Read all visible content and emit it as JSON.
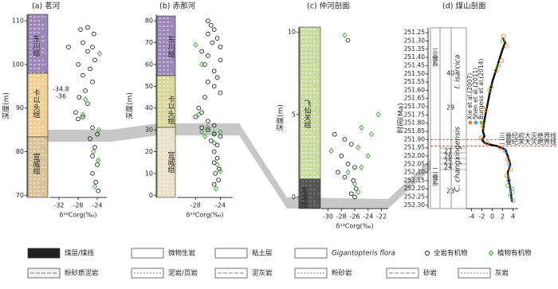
{
  "chart_data": [
    {
      "type": "scatter",
      "title": "(a) 茗河",
      "ylabel": "深度(m)",
      "xlabel": "δ¹³Corg(‰)",
      "xlim": [
        -34,
        -22
      ],
      "xticks": [
        -32,
        -28,
        -24
      ],
      "ylim": [
        69.5,
        111.5
      ],
      "yticks": [
        70,
        80,
        90,
        100,
        110
      ],
      "formations": [
        "东川组",
        "卡以头组",
        "宣威组"
      ],
      "annotations": [
        "-34.8",
        "-36"
      ],
      "series": [
        {
          "name": "全岩有机物",
          "color": "#222222",
          "marker": "circle",
          "x": [
            -27.5,
            -26,
            -24.7,
            -30,
            -27,
            -25,
            -26,
            -24.5,
            -28,
            -25.5,
            -27,
            -25,
            -26.5,
            -27.8,
            -26,
            -28.5,
            -27,
            -28,
            -25,
            -24,
            -25.5,
            -24.5,
            -25,
            -24,
            -25,
            -24.3,
            -23.8
          ],
          "values": [
            108,
            108.5,
            107,
            104,
            105,
            104,
            103,
            101,
            100,
            99,
            97.5,
            96,
            94,
            92.5,
            91,
            89,
            88,
            87.5,
            85.5,
            84,
            83,
            81,
            79,
            77,
            75,
            73,
            71
          ]
        },
        {
          "name": "植物有机物",
          "color": "#3a9a3a",
          "marker": "diamond",
          "x": [
            -23.5,
            -26.5,
            -27,
            -23.7,
            -24.8,
            -23.8,
            -24.5
          ],
          "values": [
            102.5,
            92,
            88.5,
            85,
            80,
            78,
            72
          ]
        }
      ]
    },
    {
      "type": "scatter",
      "title": "(b) 赤那河",
      "ylabel": "深度(m)",
      "xlabel": "δ¹³Corg(‰)",
      "xlim": [
        -31,
        -22
      ],
      "xticks": [
        -28,
        -24
      ],
      "ylim": [
        -1,
        83
      ],
      "yticks": [
        0,
        10,
        20,
        30,
        40,
        50,
        60,
        70,
        80
      ],
      "formations": [
        "东川组",
        "卡以头组",
        "宣威组"
      ],
      "series": [
        {
          "color": "#222222",
          "marker": "circle",
          "x": [
            -26,
            -25.5,
            -25,
            -26,
            -24.5,
            -25.3,
            -24,
            -27,
            -26,
            -24,
            -26.5,
            -25,
            -24.5,
            -26,
            -25,
            -24,
            -26.5,
            -27.5,
            -27,
            -28,
            -26,
            -25,
            -27,
            -26,
            -25,
            -24,
            -25.5,
            -24.5,
            -25,
            -24.5,
            -25,
            -24.2,
            -24.8,
            -24.3,
            -25
          ],
          "values": [
            80,
            78,
            76,
            74,
            72,
            70,
            68,
            66,
            64,
            62,
            60,
            57,
            54,
            52,
            50,
            47,
            45,
            40,
            38,
            36,
            34,
            32,
            31,
            30,
            28,
            27,
            25,
            23,
            20,
            17,
            15,
            12,
            10,
            7,
            5
          ]
        },
        {
          "color": "#3a9a3a",
          "marker": "diamond",
          "x": [
            -28,
            -27,
            -27.5,
            -26,
            -27,
            -25,
            -24,
            -26.5,
            -25,
            -24.5,
            -24,
            -24.7
          ],
          "values": [
            69,
            60,
            37,
            31,
            29,
            28.5,
            29,
            27,
            24,
            14,
            11,
            3
          ]
        }
      ]
    },
    {
      "type": "scatter",
      "title": "(c) 仲河剖面",
      "ylabel": "深度(m)",
      "xlabel": "δ¹³Corg(‰)",
      "xlim": [
        -31,
        -21
      ],
      "xticks": [
        -30,
        -28,
        -26,
        -24,
        -22
      ],
      "ylim": [
        -0.7,
        10.3
      ],
      "yticks": [
        0,
        5,
        10
      ],
      "formations": [
        "飞仙关组",
        "龙潭组"
      ],
      "series": [
        {
          "color": "#222222",
          "marker": "circle",
          "x": [
            -27,
            -29,
            -27.5,
            -26.5,
            -28,
            -27,
            -26,
            -28.5,
            -27.5,
            -26.2,
            -25.8,
            -26.5,
            -26
          ],
          "values": [
            9.5,
            3.8,
            3.5,
            3.2,
            2.5,
            2,
            1.8,
            1.5,
            1.2,
            1,
            0.5,
            0.2,
            0
          ]
        },
        {
          "color": "#3a9a3a",
          "marker": "diamond",
          "x": [
            -27.5,
            -22.5,
            -25,
            -23.5,
            -25.5,
            -29.5,
            -24,
            -25,
            -27,
            -26,
            -25.5
          ],
          "values": [
            9.8,
            5,
            4.2,
            3.8,
            3,
            2.8,
            2.5,
            1.8,
            1.5,
            0.8,
            0.3
          ]
        }
      ]
    },
    {
      "type": "line",
      "title": "(d) 煤山剖面",
      "ylabel": "时间(Ma)",
      "xlim": [
        -5,
        5
      ],
      "xticks": [
        -4,
        -2,
        0,
        2,
        4
      ],
      "ylim": [
        252.32,
        251.22
      ],
      "yticks": [
        251.25,
        {
          "value": 251.3,
          "label": "251.30"
        },
        251.35,
        {
          "value": 251.4,
          "label": "251.40"
        },
        251.45,
        {
          "value": 251.5,
          "label": "251.50"
        },
        251.55,
        {
          "value": 251.6,
          "label": "251.60"
        },
        251.65,
        {
          "value": 251.7,
          "label": "251.70"
        },
        251.75,
        {
          "value": 251.8,
          "label": "251.80"
        },
        251.85,
        {
          "value": 251.9,
          "label": "251.90"
        },
        251.95,
        {
          "value": 252,
          "label": "252.00"
        },
        252.05,
        {
          "value": 252.1,
          "label": "252.10"
        },
        252.15,
        {
          "value": 252.2,
          "label": "252.20"
        },
        252.25,
        {
          "value": 252.3,
          "label": "252.30"
        }
      ],
      "annotations": [
        "三叠系",
        "二叠系",
        "I. isarcica",
        "C. changxingensis",
        "40",
        "29",
        "27",
        "26",
        "25",
        "24",
        "23"
      ],
      "boundaries": [
        {
          "label": "三叠纪初大灭绝界线",
          "value": 251.9
        },
        {
          "label": "二叠纪末大灭绝界线",
          "value": 251.94
        }
      ],
      "series": [
        {
          "color": "#111111",
          "marker": "line",
          "x": [
            2,
            2.5,
            2,
            1.5,
            1,
            0.5,
            0,
            -0.5,
            -1,
            -1.5,
            -1.8,
            -1.5,
            -2,
            -1.5,
            -0.5,
            1,
            2.5,
            3,
            3.5,
            3,
            3.2,
            3.5,
            3.7,
            3.8
          ],
          "values": [
            251.28,
            251.31,
            251.35,
            251.4,
            251.45,
            251.5,
            251.55,
            251.62,
            251.7,
            251.78,
            251.85,
            251.88,
            251.9,
            251.92,
            251.93,
            251.94,
            251.96,
            252,
            252.05,
            252.1,
            252.15,
            252.2,
            252.25,
            252.28
          ]
        },
        {
          "name": "Xie et al.(2007)",
          "color": "#e8892a",
          "marker": "circle",
          "x": [
            2.2,
            2.8,
            1.8,
            0.8,
            -0.5,
            -1.3,
            -1.8,
            -2.2,
            -1,
            1.5,
            3,
            3.5,
            2.8
          ],
          "values": [
            251.27,
            251.33,
            251.42,
            251.48,
            251.6,
            251.72,
            251.82,
            251.89,
            251.92,
            251.95,
            252.02,
            252.08,
            252.12
          ]
        },
        {
          "name": "Shen et al.(2011)",
          "color": "#5aa0d8",
          "marker": "circle",
          "x": [
            3.2,
            3.8,
            3.5,
            2.5,
            3.3
          ],
          "values": [
            252.15,
            252.2,
            252.24,
            251.97,
            252.05
          ]
        },
        {
          "name": "Burgess et al.(2014)",
          "color": "#7ab648",
          "marker": "circle",
          "x": [
            3,
            3.9,
            4,
            2,
            -0.2,
            1.2
          ],
          "values": [
            252.18,
            252.22,
            252.27,
            251.3,
            251.58,
            251.45
          ]
        }
      ]
    }
  ],
  "legend": {
    "items": [
      "煤层/煤线",
      "微物生岩",
      "粘土层",
      "Gigantopteris flora",
      "粉砂质泥岩",
      "泥岩/页岩",
      "泥灰岩",
      "粉砂岩",
      "砂岩",
      "灰岩"
    ]
  }
}
